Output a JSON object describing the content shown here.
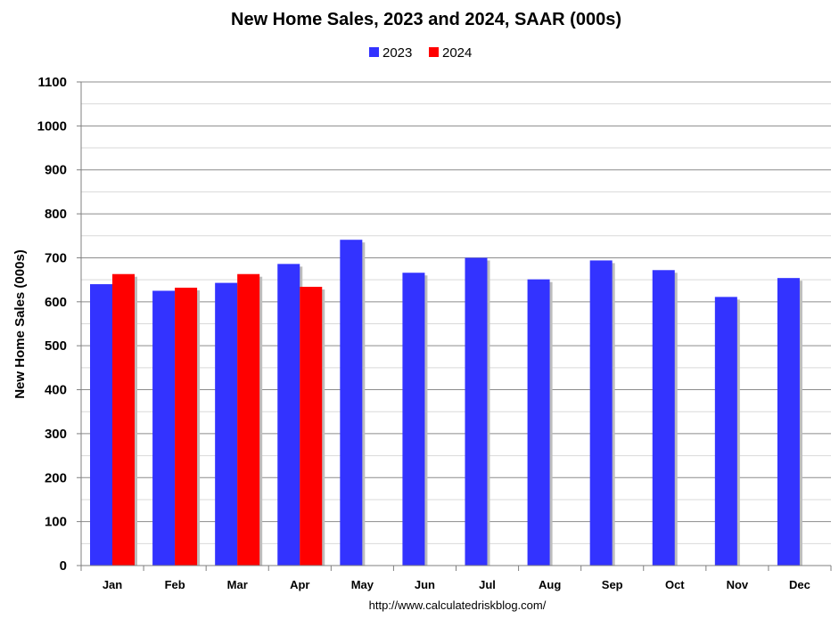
{
  "chart_data": {
    "type": "bar",
    "title": "New Home Sales,  2023 and 2024, SAAR (000s)",
    "xlabel": "",
    "ylabel": "New Home Sales (000s)",
    "categories": [
      "Jan",
      "Feb",
      "Mar",
      "Apr",
      "May",
      "Jun",
      "Jul",
      "Aug",
      "Sep",
      "Oct",
      "Nov",
      "Dec"
    ],
    "series": [
      {
        "name": "2023",
        "color": "#3333ff",
        "values": [
          640,
          625,
          643,
          686,
          741,
          666,
          700,
          651,
          694,
          672,
          611,
          654
        ]
      },
      {
        "name": "2024",
        "color": "#ff0000",
        "values": [
          663,
          632,
          663,
          634,
          null,
          null,
          null,
          null,
          null,
          null,
          null,
          null
        ]
      }
    ],
    "ylim": [
      0,
      1100
    ],
    "yticks": [
      0,
      100,
      200,
      300,
      400,
      500,
      600,
      700,
      800,
      900,
      1000,
      1100
    ],
    "grid": true,
    "minor_grid": true,
    "legend_position": "top-center",
    "source": "http://www.calculatedriskblog.com/"
  }
}
